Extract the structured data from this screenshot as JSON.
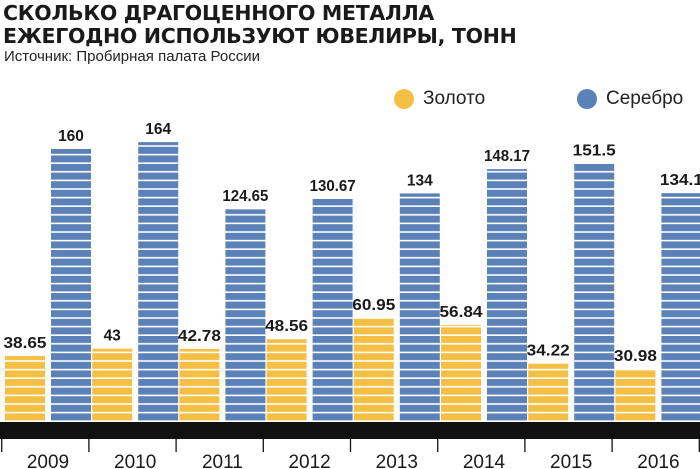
{
  "title": {
    "line1": "СКОЛЬКО ДРАГОЦЕННОГО МЕТАЛЛА",
    "line2": "ЕЖЕГОДНО ИСПОЛЬЗУЮТ ЮВЕЛИРЫ, ТОНН"
  },
  "source": "Источник: Пробирная палата России",
  "legend": [
    {
      "name": "Золото",
      "color": "#f5bf45"
    },
    {
      "name": "Серебро",
      "color": "#5b82b8"
    }
  ],
  "chart_data": {
    "type": "bar",
    "title": "СКОЛЬКО ДРАГОЦЕННОГО МЕТАЛЛА ЕЖЕГОДНО ИСПОЛЬЗУЮТ ЮВЕЛИРЫ, ТОНН",
    "categories": [
      "2009",
      "2010",
      "2011",
      "2012",
      "2013",
      "2014",
      "2015",
      "2016"
    ],
    "series": [
      {
        "name": "Золото",
        "color": "#f5bf45",
        "values": [
          38.65,
          43,
          42.78,
          48.56,
          60.95,
          56.84,
          34.22,
          30.98
        ],
        "labels": [
          "38.65",
          "43",
          "42.78",
          "48.56",
          "60.95",
          "56.84",
          "34.22",
          "30.98"
        ]
      },
      {
        "name": "Серебро",
        "color": "#5b82b8",
        "values": [
          160,
          164,
          124.65,
          130.67,
          134,
          148.17,
          151.5,
          134.1
        ],
        "labels": [
          "160",
          "164",
          "124.65",
          "130.67",
          "134",
          "148.17",
          "151.5",
          "134.1"
        ]
      }
    ],
    "ylim": [
      0,
      164
    ],
    "grid": false,
    "legend_position": "top-right"
  }
}
